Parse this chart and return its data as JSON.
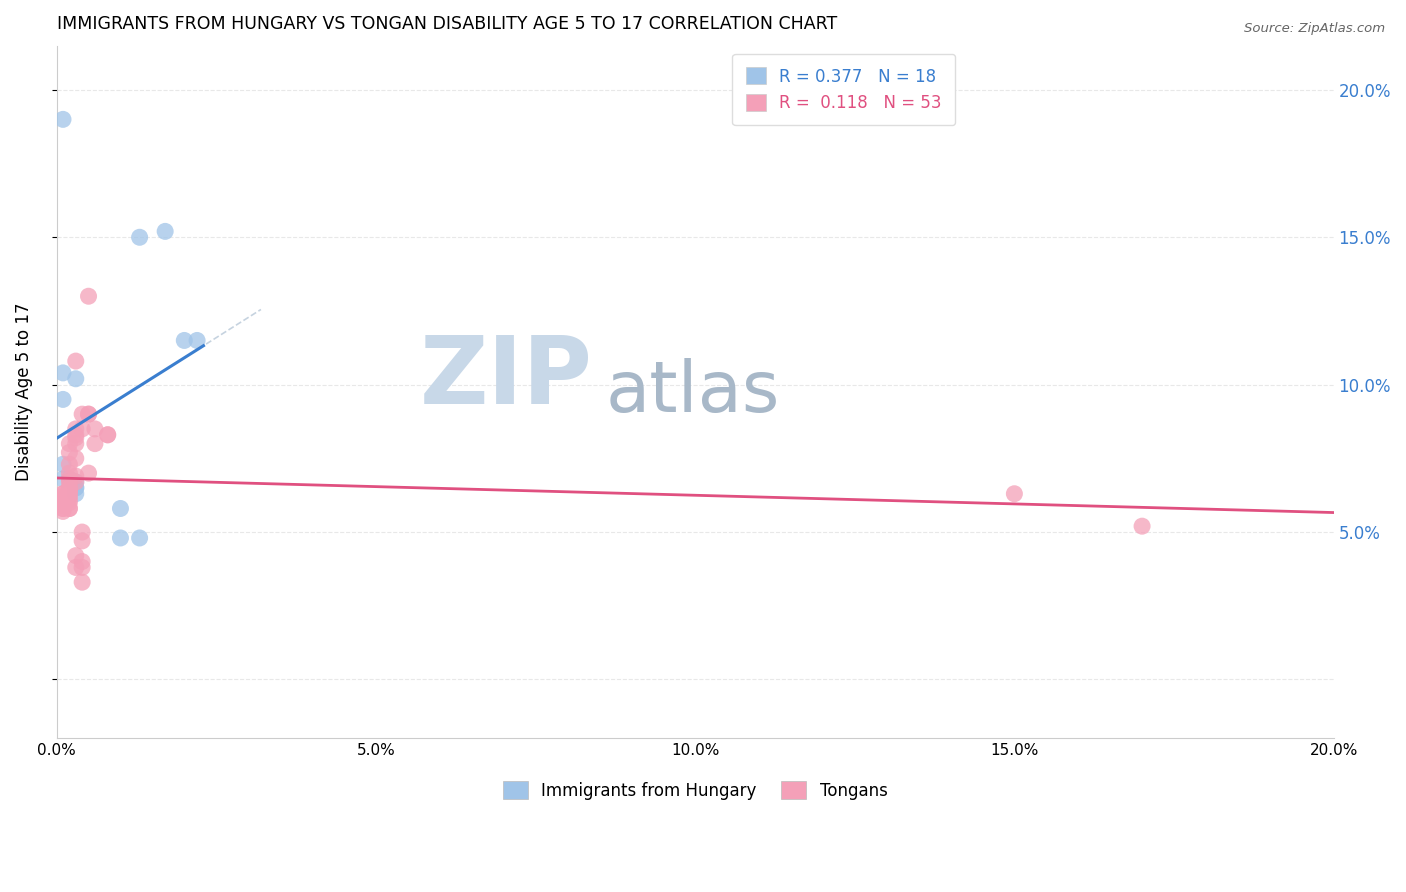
{
  "title": "IMMIGRANTS FROM HUNGARY VS TONGAN DISABILITY AGE 5 TO 17 CORRELATION CHART",
  "source": "Source: ZipAtlas.com",
  "ylabel": "Disability Age 5 to 17",
  "xlim": [
    0,
    0.2
  ],
  "ylim": [
    -0.02,
    0.215
  ],
  "legend_entries": [
    {
      "label": "R = 0.377   N = 18",
      "color": "#a8c8f0"
    },
    {
      "label": "R =  0.118   N = 53",
      "color": "#f8a8b8"
    }
  ],
  "hungary_points": [
    [
      0.001,
      0.19
    ],
    [
      0.013,
      0.15
    ],
    [
      0.017,
      0.152
    ],
    [
      0.02,
      0.115
    ],
    [
      0.022,
      0.115
    ],
    [
      0.001,
      0.104
    ],
    [
      0.003,
      0.102
    ],
    [
      0.001,
      0.095
    ],
    [
      0.001,
      0.073
    ],
    [
      0.002,
      0.068
    ],
    [
      0.001,
      0.068
    ],
    [
      0.003,
      0.067
    ],
    [
      0.003,
      0.065
    ],
    [
      0.003,
      0.065
    ],
    [
      0.003,
      0.063
    ],
    [
      0.01,
      0.058
    ],
    [
      0.01,
      0.048
    ],
    [
      0.013,
      0.048
    ]
  ],
  "tongan_points": [
    [
      0.001,
      0.063
    ],
    [
      0.001,
      0.063
    ],
    [
      0.001,
      0.062
    ],
    [
      0.001,
      0.061
    ],
    [
      0.001,
      0.061
    ],
    [
      0.001,
      0.06
    ],
    [
      0.001,
      0.059
    ],
    [
      0.001,
      0.058
    ],
    [
      0.001,
      0.058
    ],
    [
      0.001,
      0.057
    ],
    [
      0.002,
      0.08
    ],
    [
      0.002,
      0.077
    ],
    [
      0.002,
      0.073
    ],
    [
      0.002,
      0.07
    ],
    [
      0.002,
      0.068
    ],
    [
      0.002,
      0.067
    ],
    [
      0.002,
      0.065
    ],
    [
      0.002,
      0.065
    ],
    [
      0.002,
      0.064
    ],
    [
      0.002,
      0.064
    ],
    [
      0.002,
      0.063
    ],
    [
      0.002,
      0.062
    ],
    [
      0.002,
      0.061
    ],
    [
      0.002,
      0.06
    ],
    [
      0.002,
      0.058
    ],
    [
      0.002,
      0.058
    ],
    [
      0.003,
      0.108
    ],
    [
      0.003,
      0.085
    ],
    [
      0.003,
      0.083
    ],
    [
      0.003,
      0.082
    ],
    [
      0.003,
      0.08
    ],
    [
      0.003,
      0.075
    ],
    [
      0.003,
      0.069
    ],
    [
      0.003,
      0.067
    ],
    [
      0.003,
      0.042
    ],
    [
      0.003,
      0.038
    ],
    [
      0.004,
      0.09
    ],
    [
      0.004,
      0.085
    ],
    [
      0.004,
      0.05
    ],
    [
      0.004,
      0.047
    ],
    [
      0.004,
      0.04
    ],
    [
      0.004,
      0.038
    ],
    [
      0.004,
      0.033
    ],
    [
      0.005,
      0.09
    ],
    [
      0.005,
      0.09
    ],
    [
      0.005,
      0.07
    ],
    [
      0.005,
      0.13
    ],
    [
      0.006,
      0.085
    ],
    [
      0.006,
      0.08
    ],
    [
      0.008,
      0.083
    ],
    [
      0.008,
      0.083
    ],
    [
      0.15,
      0.063
    ],
    [
      0.17,
      0.052
    ]
  ],
  "hungary_color": "#a0c4e8",
  "tongan_color": "#f4a0b8",
  "hungary_line_color": "#3a7ecf",
  "tongan_line_color": "#e05080",
  "background_color": "#ffffff",
  "watermark_zip": "ZIP",
  "watermark_atlas": "atlas",
  "watermark_color_zip": "#c8d8e8",
  "watermark_color_atlas": "#a8b8c8",
  "grid_color": "#e8e8e8",
  "bottom_legend": [
    {
      "label": "Immigrants from Hungary",
      "color": "#a0c4e8"
    },
    {
      "label": "Tongans",
      "color": "#f4a0b8"
    }
  ]
}
